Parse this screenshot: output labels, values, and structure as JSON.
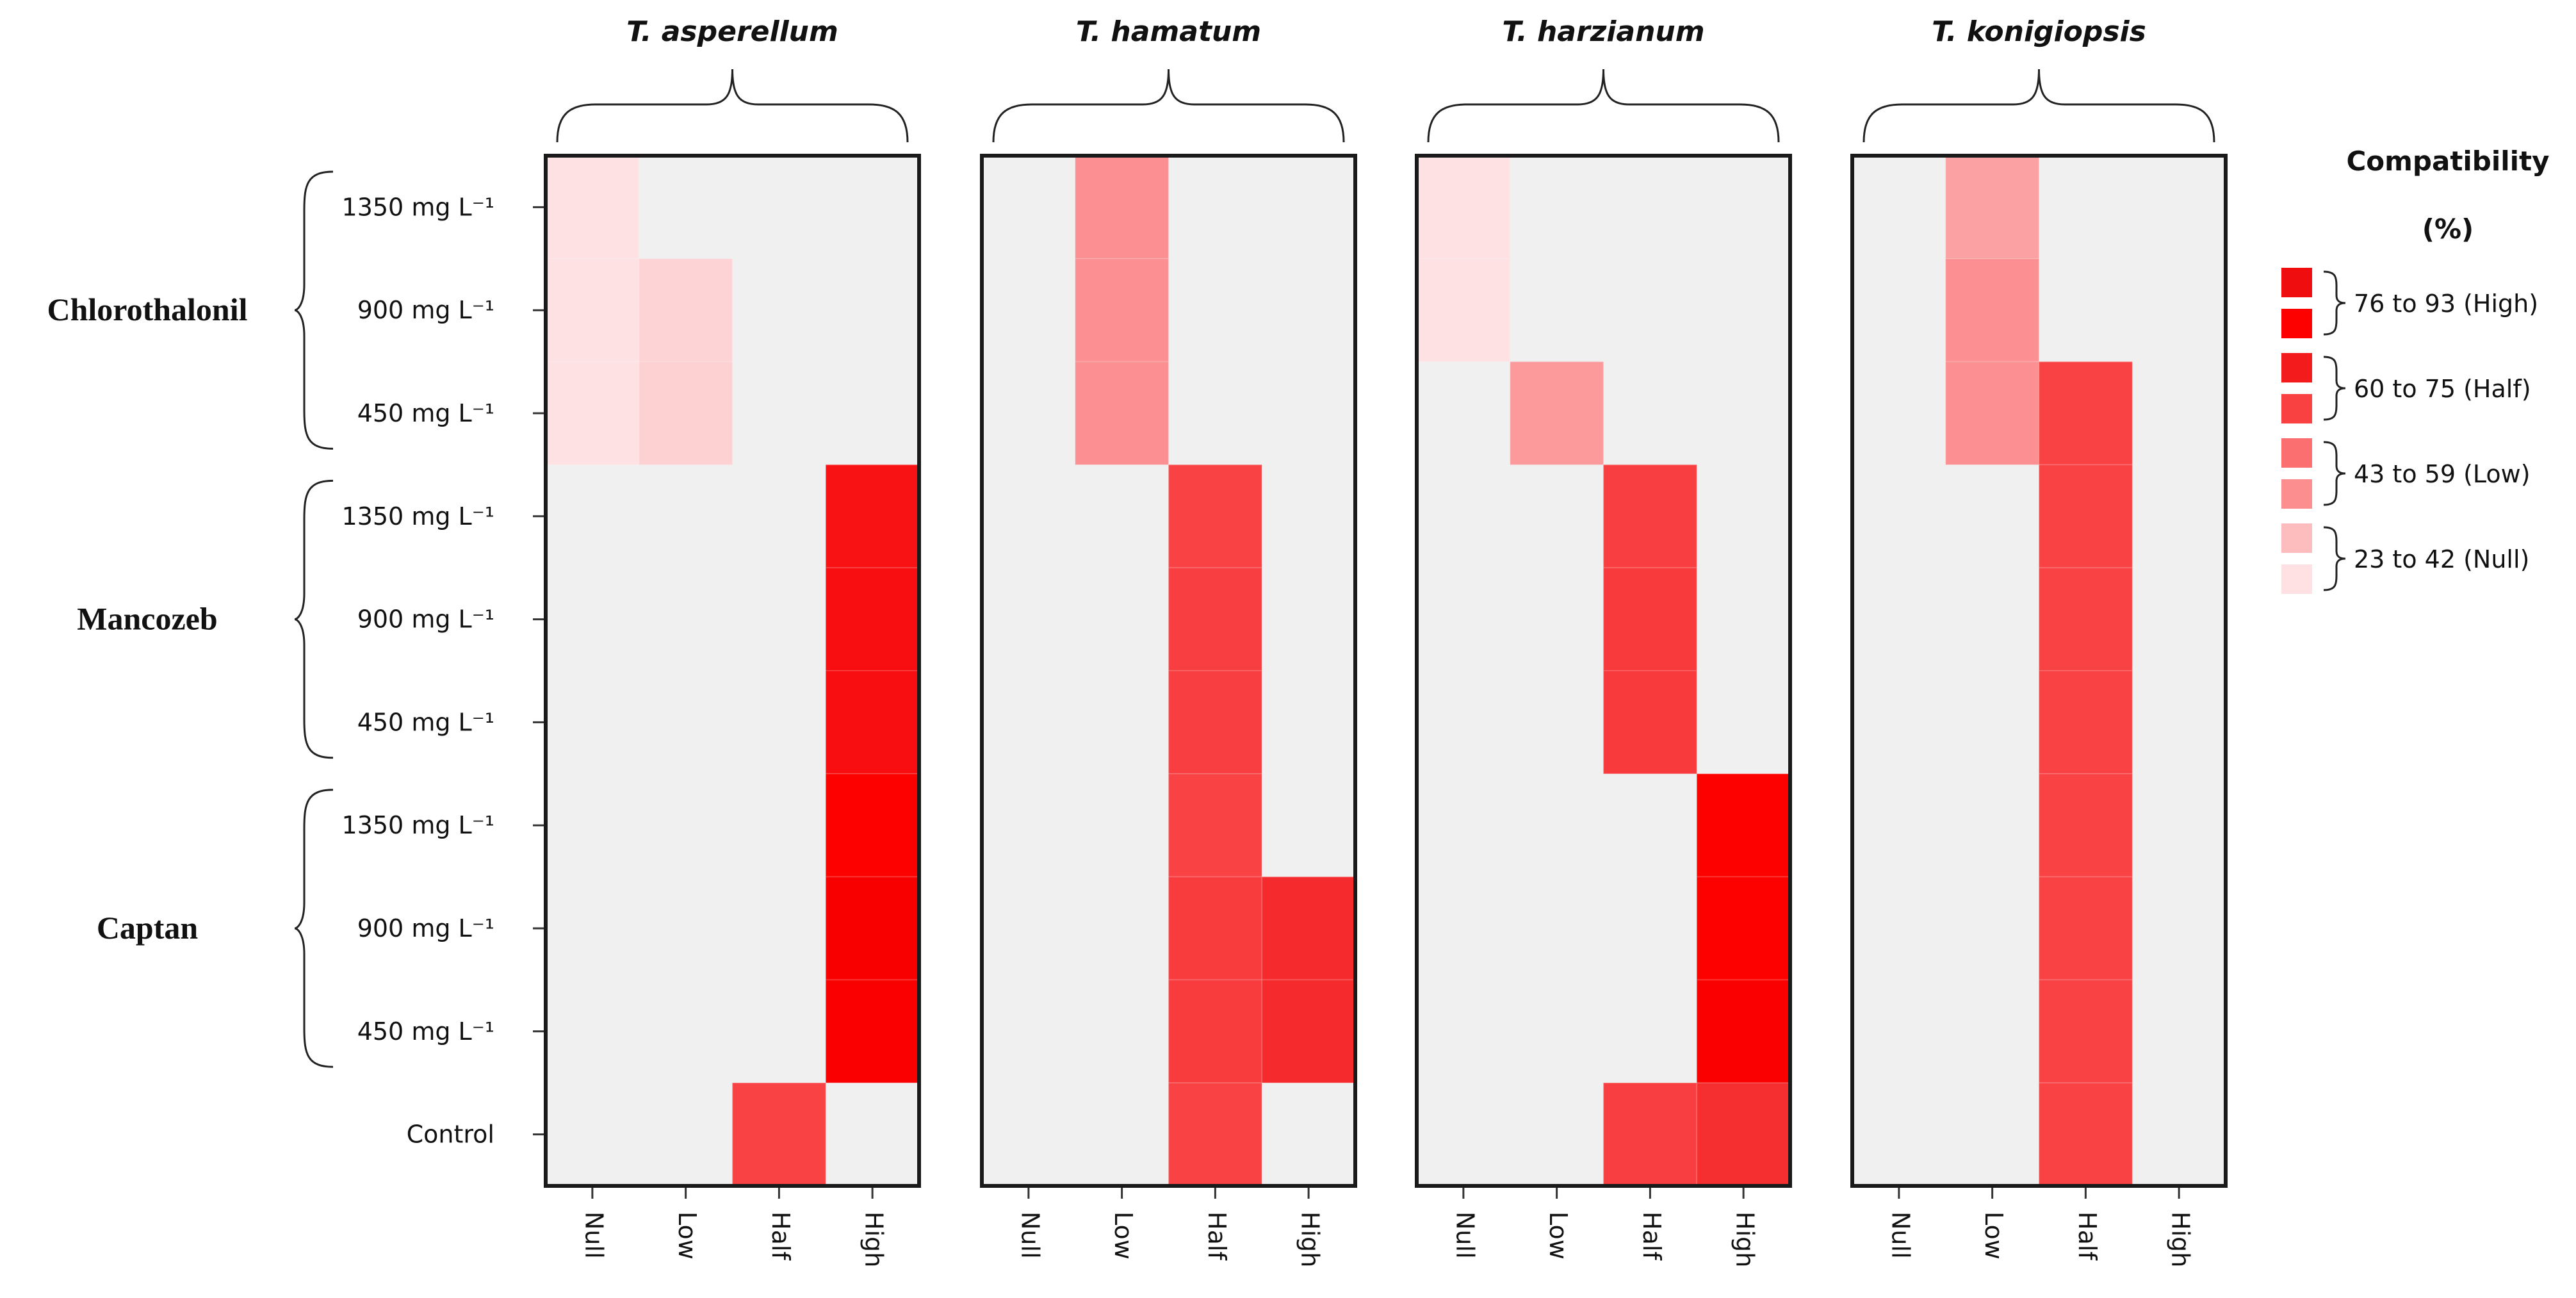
{
  "chart_data": {
    "type": "heatmap",
    "x_categories": [
      "Null",
      "Low",
      "Half",
      "High"
    ],
    "row_labels": [
      "1350 mg L⁻¹",
      "900 mg L⁻¹",
      "450 mg L⁻¹",
      "1350 mg L⁻¹",
      "900 mg L⁻¹",
      "450 mg L⁻¹",
      "1350 mg L⁻¹",
      "900 mg L⁻¹",
      "450 mg L⁻¹",
      "Control"
    ],
    "groups": [
      {
        "name": "Chlorothalonil",
        "rows": [
          0,
          2
        ]
      },
      {
        "name": "Mancozeb",
        "rows": [
          3,
          5
        ]
      },
      {
        "name": "Captan",
        "rows": [
          6,
          8
        ]
      }
    ],
    "legend_title_line1": "Compatibility",
    "legend_title_line2": "(%)",
    "legend": [
      {
        "label": "76 to 93 (High)",
        "colors": [
          "#f00d10",
          "#fd0000"
        ]
      },
      {
        "label": "60 to 75 (Half)",
        "colors": [
          "#f41b1d",
          "#f94141"
        ]
      },
      {
        "label": "43 to 59 (Low)",
        "colors": [
          "#fb6f70",
          "#fd8e90"
        ]
      },
      {
        "label": "23 to 42 (Null)",
        "colors": [
          "#fdbdbf",
          "#ffe1e3"
        ]
      }
    ],
    "panels": [
      {
        "title": "T. asperellum",
        "cells": [
          {
            "row": 0,
            "col": 0,
            "color": "#fee1e3"
          },
          {
            "row": 1,
            "col": 0,
            "color": "#fee1e3"
          },
          {
            "row": 1,
            "col": 1,
            "color": "#fdd3d5"
          },
          {
            "row": 2,
            "col": 0,
            "color": "#fee1e3"
          },
          {
            "row": 2,
            "col": 1,
            "color": "#fdd0d2"
          },
          {
            "row": 3,
            "col": 3,
            "color": "#f81214"
          },
          {
            "row": 4,
            "col": 3,
            "color": "#f80e10"
          },
          {
            "row": 5,
            "col": 3,
            "color": "#f80e10"
          },
          {
            "row": 6,
            "col": 3,
            "color": "#fd0000"
          },
          {
            "row": 7,
            "col": 3,
            "color": "#f90000"
          },
          {
            "row": 8,
            "col": 3,
            "color": "#fb0000"
          },
          {
            "row": 9,
            "col": 2,
            "color": "#f84244"
          }
        ]
      },
      {
        "title": "T. hamatum",
        "cells": [
          {
            "row": 0,
            "col": 1,
            "color": "#fb8f91"
          },
          {
            "row": 1,
            "col": 1,
            "color": "#fb8f91"
          },
          {
            "row": 2,
            "col": 1,
            "color": "#fb8f91"
          },
          {
            "row": 3,
            "col": 2,
            "color": "#f84244"
          },
          {
            "row": 4,
            "col": 2,
            "color": "#f83e40"
          },
          {
            "row": 5,
            "col": 2,
            "color": "#f83e40"
          },
          {
            "row": 6,
            "col": 2,
            "color": "#f84244"
          },
          {
            "row": 7,
            "col": 2,
            "color": "#f83c3e"
          },
          {
            "row": 7,
            "col": 3,
            "color": "#f52a2c"
          },
          {
            "row": 8,
            "col": 2,
            "color": "#f83c3e"
          },
          {
            "row": 8,
            "col": 3,
            "color": "#f52a2c"
          },
          {
            "row": 9,
            "col": 2,
            "color": "#f84244"
          }
        ]
      },
      {
        "title": "T. harzianum",
        "cells": [
          {
            "row": 0,
            "col": 0,
            "color": "#fee1e3"
          },
          {
            "row": 1,
            "col": 0,
            "color": "#fee1e3"
          },
          {
            "row": 2,
            "col": 1,
            "color": "#fb999b"
          },
          {
            "row": 3,
            "col": 2,
            "color": "#f83e40"
          },
          {
            "row": 4,
            "col": 2,
            "color": "#f83a3c"
          },
          {
            "row": 5,
            "col": 2,
            "color": "#f83a3c"
          },
          {
            "row": 6,
            "col": 3,
            "color": "#fd0000"
          },
          {
            "row": 7,
            "col": 3,
            "color": "#fd0000"
          },
          {
            "row": 8,
            "col": 3,
            "color": "#fb0000"
          },
          {
            "row": 9,
            "col": 2,
            "color": "#f83e40"
          },
          {
            "row": 9,
            "col": 3,
            "color": "#f52e30"
          }
        ]
      },
      {
        "title": "T. konigiopsis",
        "cells": [
          {
            "row": 0,
            "col": 1,
            "color": "#fca1a3"
          },
          {
            "row": 1,
            "col": 1,
            "color": "#fb8f91"
          },
          {
            "row": 2,
            "col": 1,
            "color": "#fb8f91"
          },
          {
            "row": 2,
            "col": 2,
            "color": "#f84244"
          },
          {
            "row": 3,
            "col": 2,
            "color": "#f84244"
          },
          {
            "row": 4,
            "col": 2,
            "color": "#f84244"
          },
          {
            "row": 5,
            "col": 2,
            "color": "#f84244"
          },
          {
            "row": 6,
            "col": 2,
            "color": "#f84244"
          },
          {
            "row": 7,
            "col": 2,
            "color": "#f84244"
          },
          {
            "row": 8,
            "col": 2,
            "color": "#f84244"
          },
          {
            "row": 9,
            "col": 2,
            "color": "#f84244"
          }
        ]
      }
    ]
  }
}
